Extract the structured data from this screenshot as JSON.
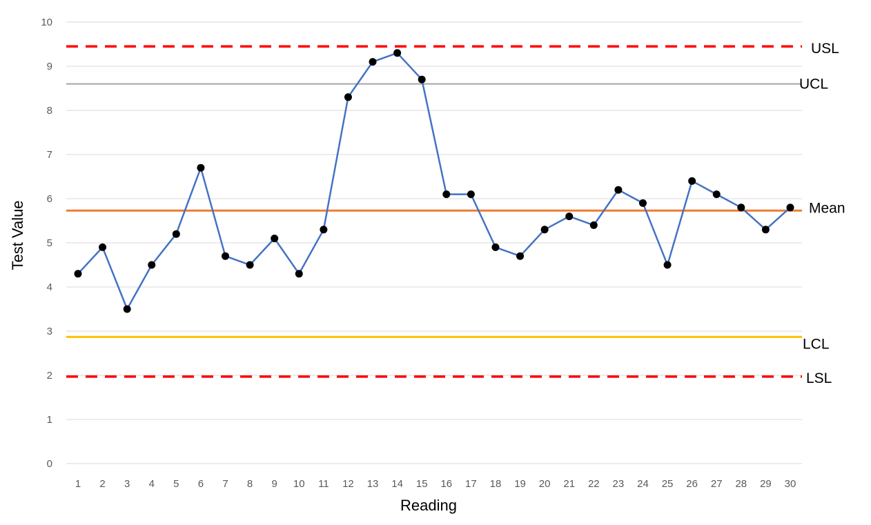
{
  "chart_data": {
    "type": "line",
    "xlabel": "Reading",
    "ylabel": "Test Value",
    "ylim": [
      0,
      10
    ],
    "yticks": [
      0,
      1,
      2,
      3,
      4,
      5,
      6,
      7,
      8,
      9,
      10
    ],
    "grid": "horizontal",
    "x": [
      1,
      2,
      3,
      4,
      5,
      6,
      7,
      8,
      9,
      10,
      11,
      12,
      13,
      14,
      15,
      16,
      17,
      18,
      19,
      20,
      21,
      22,
      23,
      24,
      25,
      26,
      27,
      28,
      29,
      30
    ],
    "series": [
      {
        "values": [
          4.3,
          4.9,
          3.5,
          4.5,
          5.2,
          6.7,
          4.7,
          4.5,
          5.1,
          4.3,
          5.3,
          8.3,
          9.1,
          9.3,
          8.7,
          6.1,
          6.1,
          4.9,
          4.7,
          5.3,
          5.6,
          5.4,
          6.2,
          5.9,
          4.5,
          6.4,
          6.1,
          5.8,
          5.3,
          5.8
        ],
        "color": "#4472C4",
        "marker_color": "#000000"
      }
    ],
    "reference_lines": [
      {
        "label": "USL",
        "value": 9.45,
        "color": "#FF0000",
        "style": "dashed"
      },
      {
        "label": "UCL",
        "value": 8.6,
        "color": "#A5A5A5",
        "style": "solid"
      },
      {
        "label": "Mean",
        "value": 5.73,
        "color": "#ED7D31",
        "style": "solid"
      },
      {
        "label": "LCL",
        "value": 2.87,
        "color": "#FFC000",
        "style": "solid"
      },
      {
        "label": "LSL",
        "value": 1.97,
        "color": "#FF0000",
        "style": "dashed"
      }
    ]
  }
}
